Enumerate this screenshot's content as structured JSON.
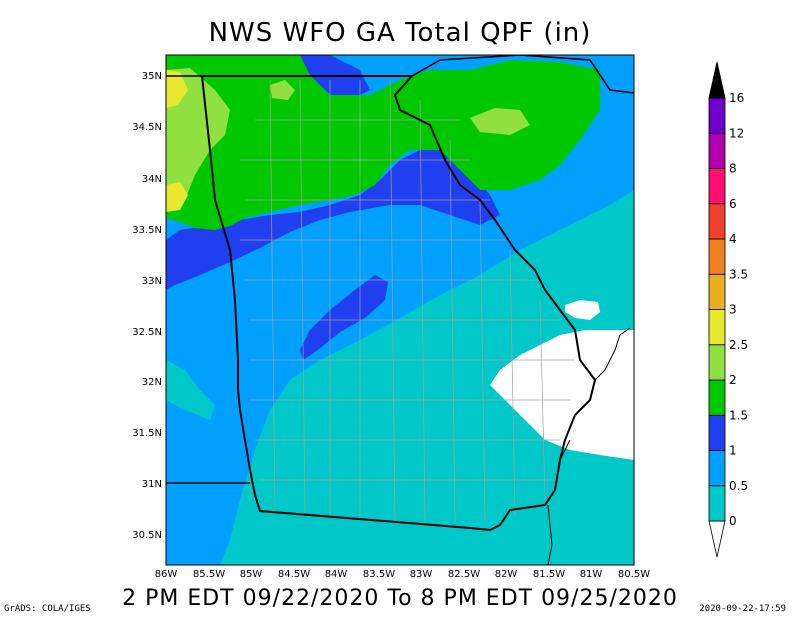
{
  "map": {
    "title": "NWS WFO GA Total QPF (in)",
    "valid_period": "2 PM EDT 09/22/2020 To 8 PM EDT 09/25/2020",
    "credit": "GrADS: COLA/IGES",
    "timestamp": "2020-09-22-17:59",
    "lat_labels": [
      "35N",
      "34.5N",
      "34N",
      "33.5N",
      "33N",
      "32.5N",
      "32N",
      "31.5N",
      "31N",
      "30.5N"
    ],
    "lon_labels": [
      "86W",
      "85.5W",
      "85W",
      "84.5W",
      "84W",
      "83.5W",
      "83W",
      "82.5W",
      "82W",
      "81.5W",
      "81W",
      "80.5W"
    ],
    "colorbar": {
      "levels": [
        "0",
        "0.5",
        "1",
        "1.5",
        "2",
        "2.5",
        "3",
        "3.5",
        "4",
        "6",
        "8",
        "12",
        "16"
      ],
      "colors": [
        "#ffffff",
        "#00c8c8",
        "#00a0ff",
        "#2040f0",
        "#00c800",
        "#90e040",
        "#e8e830",
        "#e8b020",
        "#f08020",
        "#f04030",
        "#ff1070",
        "#b000b0",
        "#7000d0",
        "#000000"
      ]
    },
    "region_colors": {
      "none": "#ffffff",
      "0.5-1": "#00c8c8",
      "1-1.5": "#00a0ff",
      "1.5-2": "#2040f0",
      "2-2.5": "#00c800",
      "2.5-3": "#90e040",
      "3-3.5": "#e8e830"
    }
  }
}
